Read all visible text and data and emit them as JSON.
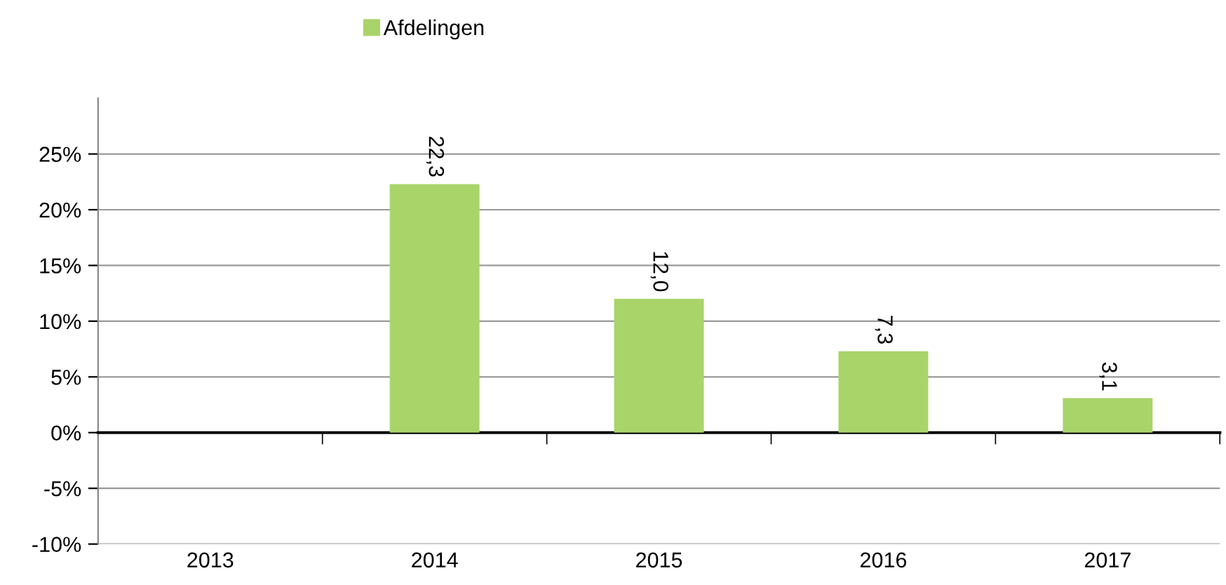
{
  "chart_data": {
    "type": "bar",
    "categories": [
      "2013",
      "2014",
      "2015",
      "2016",
      "2017"
    ],
    "series": [
      {
        "name": "Afdelingen",
        "color": "#a9d46a",
        "values": [
          null,
          22.3,
          12.0,
          7.3,
          3.1
        ],
        "value_labels": [
          null,
          "22,3",
          "12,0",
          "7,3",
          "3,1"
        ]
      }
    ],
    "ylim": [
      -10,
      30
    ],
    "yticks": [
      {
        "value": -10,
        "label": "-10%"
      },
      {
        "value": -5,
        "label": "-5%"
      },
      {
        "value": 0,
        "label": "0%"
      },
      {
        "value": 5,
        "label": "5%"
      },
      {
        "value": 10,
        "label": "10%"
      },
      {
        "value": 15,
        "label": "15%"
      },
      {
        "value": 20,
        "label": "20%"
      },
      {
        "value": 25,
        "label": "25%"
      }
    ],
    "grid": "y",
    "legend": "top left"
  }
}
